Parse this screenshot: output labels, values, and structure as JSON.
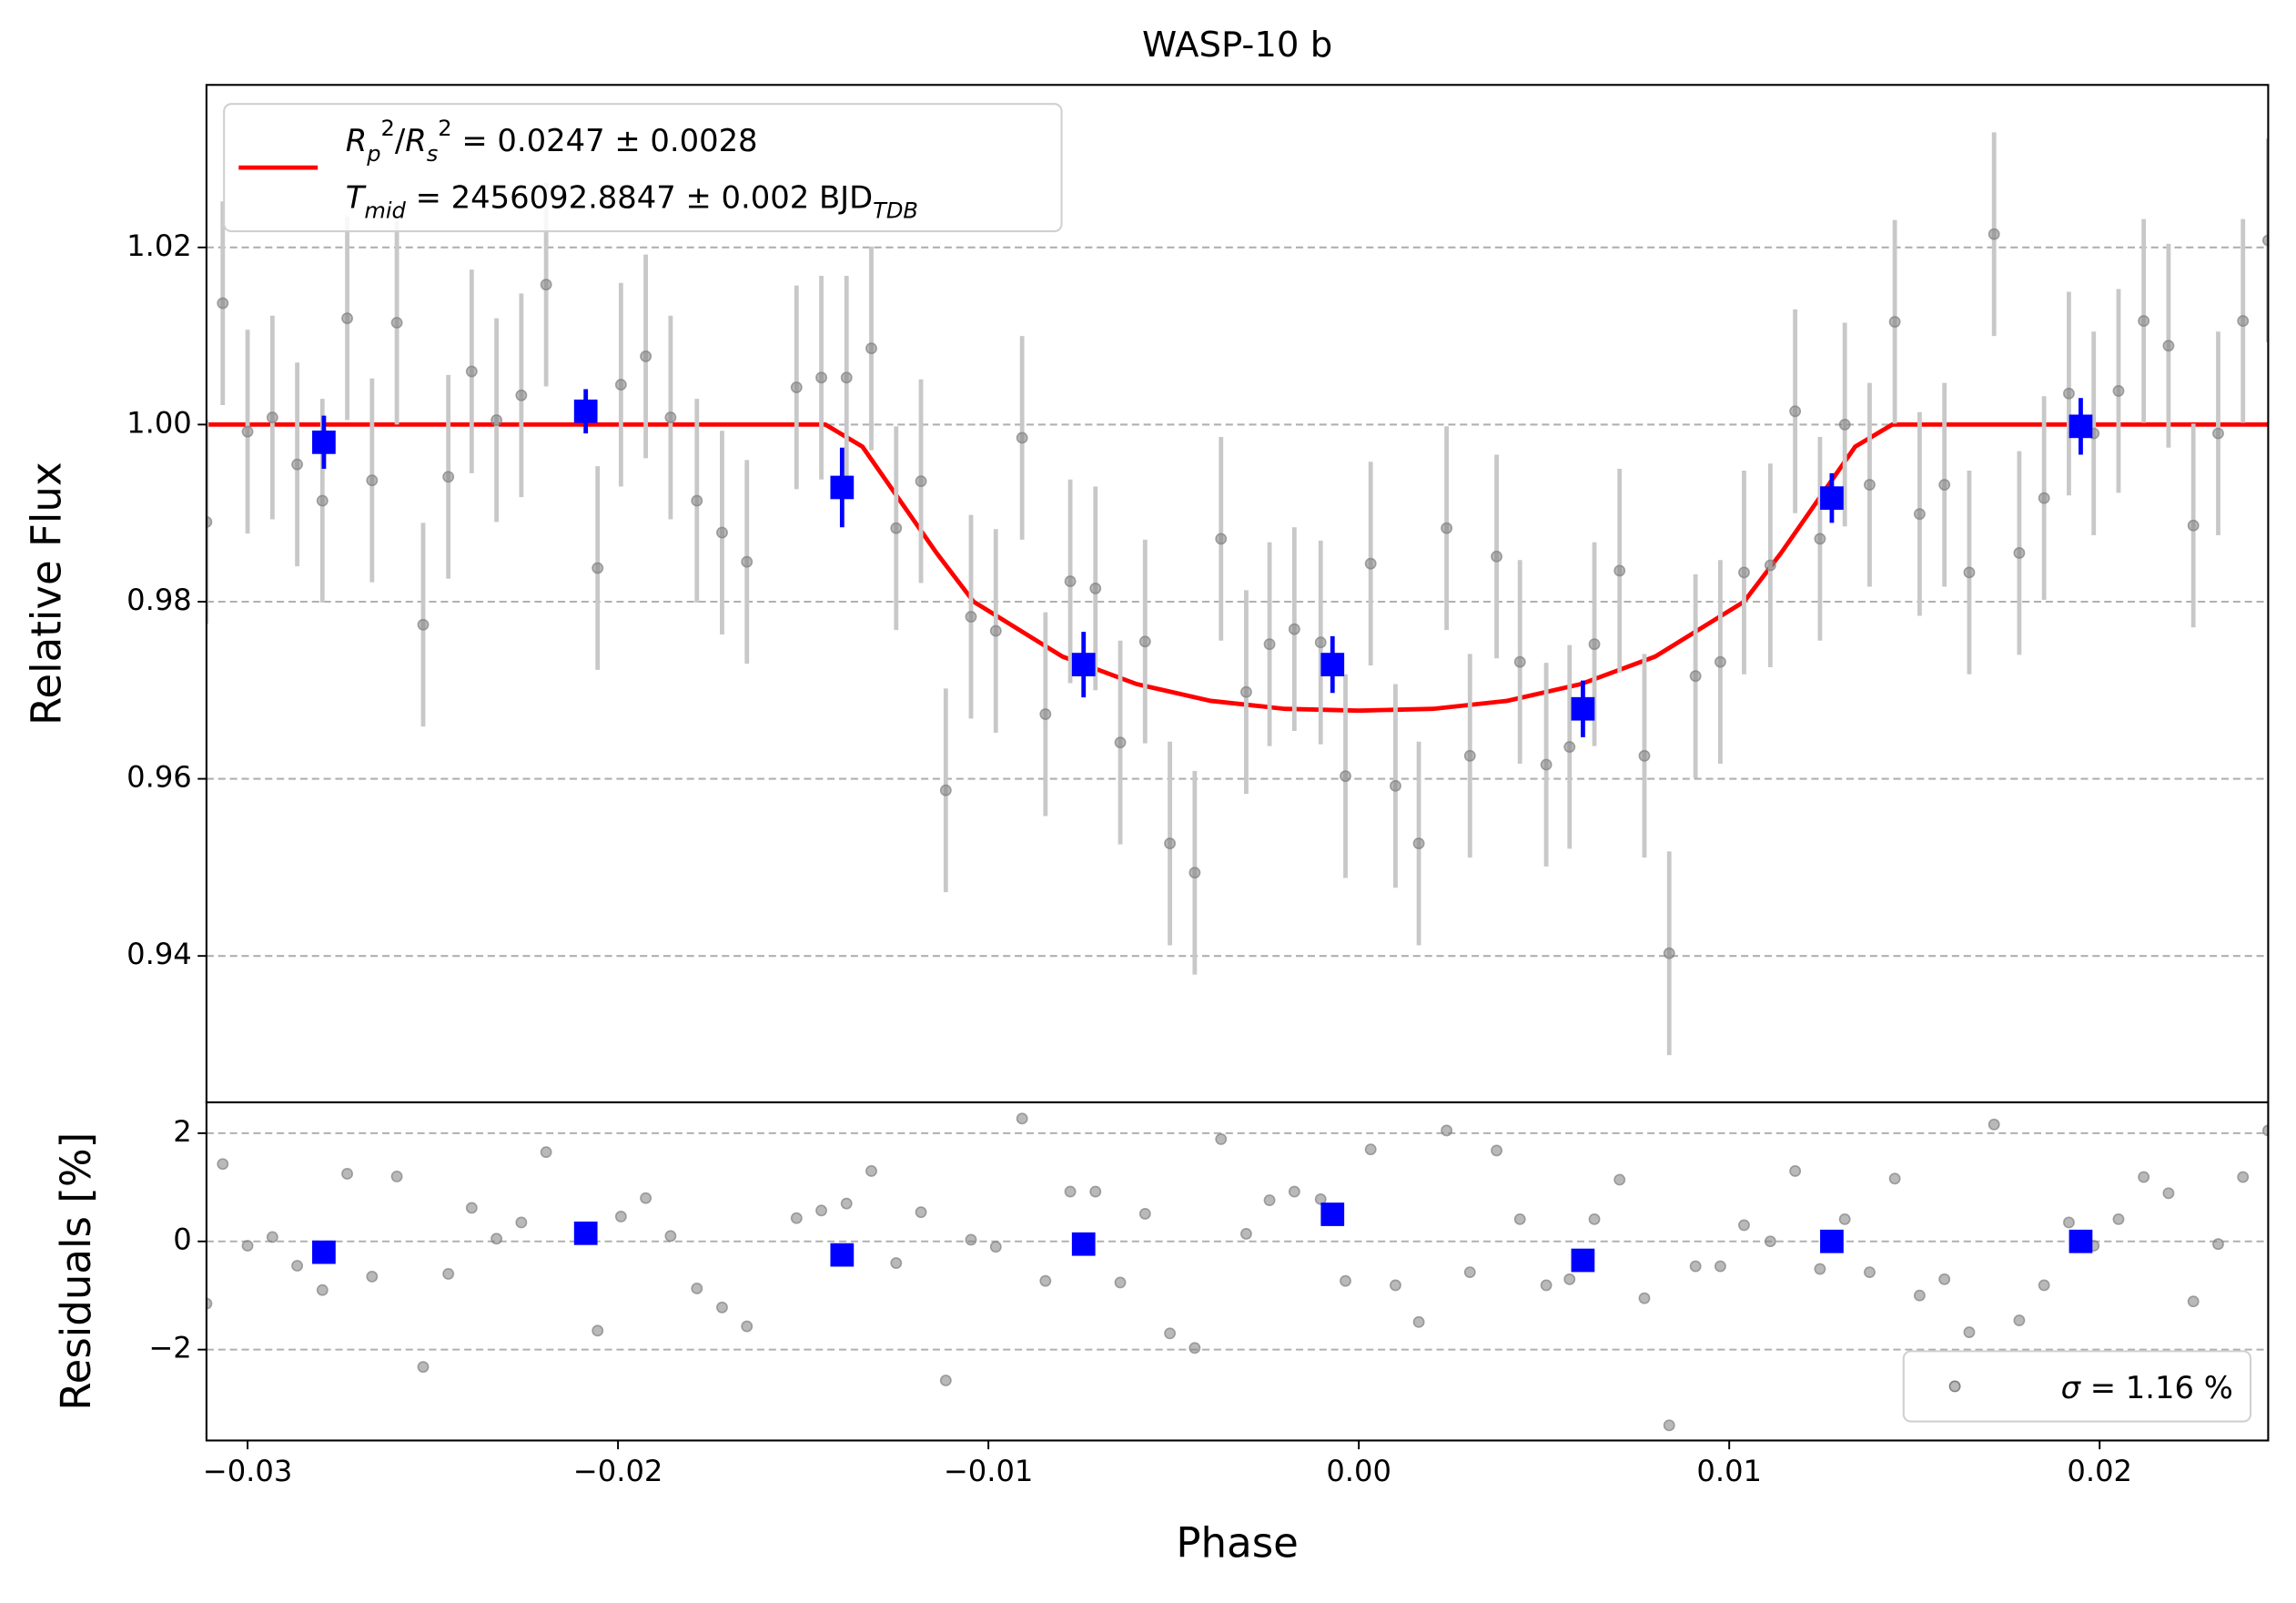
{
  "chart_data": [
    {
      "type": "errorbar",
      "title": "WASP-10 b",
      "ylabel": "Relative Flux",
      "xlim": [
        -0.03111,
        0.02455
      ],
      "ylim": [
        0.92347,
        1.03835
      ],
      "yticks": [
        0.94,
        0.96,
        0.98,
        {
          "value": 1,
          "label": "1.00"
        },
        1.02
      ],
      "grid": true,
      "legend": "upper left",
      "series": [
        {
          "kind": "line",
          "color": "#ff0000",
          "name": [
            [
              {
                "text": "R",
                "style": "italic"
              },
              {
                "text": "p",
                "style": "sub"
              },
              {
                "text": "2",
                "style": "sup"
              },
              {
                "text": "/",
                "style": "plain"
              },
              {
                "text": "R",
                "style": "italic"
              },
              {
                "text": "s",
                "style": "sub"
              },
              {
                "text": "2",
                "style": "sup"
              },
              {
                "text": " = 0.0247 ± 0.0028",
                "style": "plain"
              }
            ],
            [
              {
                "text": "T",
                "style": "italic"
              },
              {
                "text": "mid",
                "style": "sub"
              },
              {
                "text": " = 2456092.8847 ± 0.002 BJD",
                "style": "plain"
              },
              {
                "text": "TDB",
                "style": "sub"
              }
            ]
          ],
          "x": [
            -0.0311,
            -0.0144,
            -0.0134,
            -0.0124,
            -0.0114,
            -0.0104,
            -0.008,
            -0.006,
            -0.004,
            -0.002,
            0,
            0.002,
            0.004,
            0.006,
            0.008,
            0.0104,
            0.0114,
            0.0124,
            0.0134,
            0.0144,
            0.0246
          ],
          "values": [
            1,
            1,
            0.9975,
            0.9915,
            0.9855,
            0.98,
            0.9738,
            0.9707,
            0.9688,
            0.9679,
            0.9677,
            0.9679,
            0.9688,
            0.9707,
            0.9738,
            0.98,
            0.9855,
            0.9915,
            0.9975,
            1,
            1
          ]
        },
        {
          "kind": "points",
          "color": "#808080",
          "error": 0.0115,
          "x": [
            -0.03111,
            -0.03067,
            -0.03,
            -0.02933,
            -0.02866,
            -0.02798,
            -0.02731,
            -0.02664,
            -0.02597,
            -0.02526,
            -0.02458,
            -0.02395,
            -0.02328,
            -0.02261,
            -0.02194,
            -0.02055,
            -0.01992,
            -0.01925,
            -0.01858,
            -0.01787,
            -0.01719,
            -0.01652,
            -0.01518,
            -0.01451,
            -0.01383,
            -0.01316,
            -0.01249,
            -0.01182,
            -0.01115,
            -0.01047,
            -0.0098,
            -0.00909,
            -0.00846,
            -0.00779,
            -0.00711,
            -0.00644,
            -0.00577,
            -0.0051,
            -0.00443,
            -0.00372,
            -0.00304,
            -0.00241,
            -0.00174,
            -0.00103,
            -0.00036,
            0.00032,
            0.00099,
            0.00162,
            0.00237,
            0.003,
            0.00372,
            0.00435,
            0.00506,
            0.00569,
            0.00636,
            0.00704,
            0.00771,
            0.00838,
            0.00909,
            0.00976,
            0.0104,
            0.01111,
            0.01178,
            0.01245,
            0.01312,
            0.01379,
            0.01447,
            0.01514,
            0.01581,
            0.01648,
            0.01715,
            0.01783,
            0.0185,
            0.01917,
            0.01984,
            0.02051,
            0.02119,
            0.02186,
            0.02253,
            0.0232,
            0.02387,
            0.02455
          ],
          "values": [
            0.989,
            1.0137,
            0.9992,
            1.0008,
            0.9955,
            0.9914,
            1.012,
            0.9937,
            1.0115,
            0.9774,
            0.9941,
            1.006,
            1.0005,
            1.0033,
            1.0158,
            0.9838,
            1.0045,
            1.0077,
            1.0008,
            0.9914,
            0.9878,
            0.9845,
            1.0042,
            1.0053,
            1.0053,
            1.0086,
            0.9883,
            0.9936,
            0.9587,
            0.9783,
            0.9767,
            0.9985,
            0.9673,
            0.9823,
            0.9815,
            0.9641,
            0.9755,
            0.9527,
            0.9494,
            0.9871,
            0.9698,
            0.9752,
            0.9769,
            0.9754,
            0.9603,
            0.9843,
            0.9592,
            0.9527,
            0.9883,
            0.9626,
            0.9851,
            0.9732,
            0.9616,
            0.9636,
            0.9752,
            0.9835,
            0.9626,
            0.9403,
            0.9716,
            0.9732,
            0.9833,
            0.9841,
            1.0015,
            0.9871,
            1.0,
            0.9932,
            1.0116,
            0.9899,
            0.9932,
            0.9833,
            1.0215,
            0.9855,
            0.9917,
            1.0035,
            0.999,
            1.0038,
            1.0117,
            1.0089,
            0.9886,
            0.999,
            1.0117,
            1.0208
          ]
        },
        {
          "kind": "binned",
          "color": "#0000ff",
          "x": [
            -0.02794,
            -0.02087,
            -0.01395,
            -0.00743,
            -0.00071,
            0.00605,
            0.01277,
            0.01949
          ],
          "values": [
            0.998,
            1.0015,
            0.9929,
            0.9729,
            0.9729,
            0.9679,
            0.9917,
            0.9998
          ],
          "errors": [
            0.003,
            0.0025,
            0.0045,
            0.0037,
            0.0032,
            0.0032,
            0.0028,
            0.0032
          ]
        }
      ]
    },
    {
      "type": "scatter",
      "ylabel": "Residuals [%]",
      "xlabel": "Phase",
      "xlim": [
        -0.03111,
        0.02455
      ],
      "ylim": [
        -3.68,
        2.57
      ],
      "xticks": [
        {
          "value": -0.03,
          "label": "−0.03"
        },
        {
          "value": -0.02,
          "label": "−0.02"
        },
        {
          "value": -0.01,
          "label": "−0.01"
        },
        {
          "value": 0,
          "label": "0.00"
        },
        0.01,
        0.02
      ],
      "yticks": [
        {
          "value": -2,
          "label": "−2"
        },
        0,
        2
      ],
      "grid": true,
      "legend": "lower right",
      "series": [
        {
          "kind": "points",
          "color": "#808080",
          "name": [
            [
              {
                "text": "σ",
                "style": "italic"
              },
              {
                "text": " = 1.16 %",
                "style": "plain"
              }
            ]
          ],
          "x": [
            -0.03111,
            -0.03067,
            -0.03,
            -0.02933,
            -0.02866,
            -0.02798,
            -0.02731,
            -0.02664,
            -0.02597,
            -0.02526,
            -0.02458,
            -0.02395,
            -0.02328,
            -0.02261,
            -0.02194,
            -0.02055,
            -0.01992,
            -0.01925,
            -0.01858,
            -0.01787,
            -0.01719,
            -0.01652,
            -0.01518,
            -0.01451,
            -0.01383,
            -0.01316,
            -0.01249,
            -0.01182,
            -0.01115,
            -0.01047,
            -0.0098,
            -0.00909,
            -0.00846,
            -0.00779,
            -0.00711,
            -0.00644,
            -0.00577,
            -0.0051,
            -0.00443,
            -0.00372,
            -0.00304,
            -0.00241,
            -0.00174,
            -0.00103,
            -0.00036,
            0.00032,
            0.00099,
            0.00162,
            0.00237,
            0.003,
            0.00372,
            0.00435,
            0.00506,
            0.00569,
            0.00636,
            0.00704,
            0.00771,
            0.00838,
            0.00909,
            0.00976,
            0.0104,
            0.01111,
            0.01178,
            0.01245,
            0.01312,
            0.01379,
            0.01447,
            0.01514,
            0.01581,
            0.01648,
            0.01715,
            0.01783,
            0.0185,
            0.01917,
            0.01984,
            0.02051,
            0.02119,
            0.02186,
            0.02253,
            0.0232,
            0.02387,
            0.02455
          ],
          "values": [
            -1.15,
            1.43,
            -0.08,
            0.08,
            -0.45,
            -0.9,
            1.25,
            -0.65,
            1.2,
            -2.32,
            -0.6,
            0.62,
            0.05,
            0.35,
            1.65,
            -1.65,
            0.46,
            0.8,
            0.1,
            -0.87,
            -1.22,
            -1.57,
            0.43,
            0.57,
            0.7,
            1.3,
            -0.4,
            0.54,
            -2.57,
            0.03,
            -0.1,
            2.27,
            -0.73,
            0.92,
            0.92,
            -0.76,
            0.51,
            -1.7,
            -1.97,
            1.89,
            0.14,
            0.76,
            0.92,
            0.78,
            -0.73,
            1.7,
            -0.81,
            -1.49,
            2.05,
            -0.57,
            1.68,
            0.41,
            -0.81,
            -0.7,
            0.41,
            1.14,
            -1.05,
            -3.4,
            -0.46,
            -0.46,
            0.3,
            0.0,
            1.3,
            -0.51,
            0.41,
            -0.57,
            1.16,
            -1.0,
            -0.7,
            -1.68,
            2.16,
            -1.46,
            -0.81,
            0.35,
            -0.08,
            0.41,
            1.19,
            0.89,
            -1.11,
            -0.05,
            1.19,
            2.05
          ]
        },
        {
          "kind": "binned",
          "color": "#0000ff",
          "x": [
            -0.02794,
            -0.02087,
            -0.01395,
            -0.00743,
            -0.00071,
            0.00605,
            0.01277,
            0.01949
          ],
          "values": [
            -0.2,
            0.15,
            -0.25,
            -0.05,
            0.5,
            -0.35,
            0.0,
            0.0
          ]
        }
      ]
    }
  ]
}
